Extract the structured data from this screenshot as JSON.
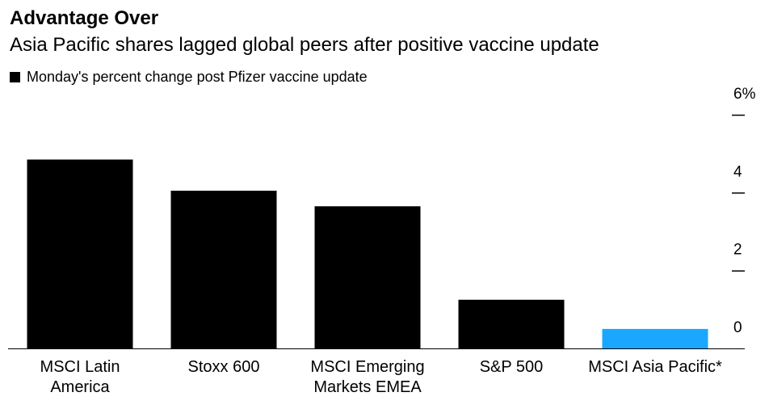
{
  "chart_data": {
    "type": "bar",
    "title": "Advantage Over",
    "subtitle": "Asia Pacific shares lagged global peers after positive vaccine update",
    "legend": [
      {
        "label": "Monday's percent change post Pfizer vaccine update",
        "color": "#000000"
      }
    ],
    "categories": [
      [
        "MSCI Latin",
        "America"
      ],
      [
        "Stoxx 600"
      ],
      [
        "MSCI Emerging",
        "Markets EMEA"
      ],
      [
        "S&P 500"
      ],
      [
        "MSCI Asia Pacific*"
      ]
    ],
    "values": [
      4.85,
      4.05,
      3.65,
      1.25,
      0.5
    ],
    "bar_colors": [
      "#000000",
      "#000000",
      "#000000",
      "#000000",
      "#1aa7ff"
    ],
    "ylim": [
      0,
      6
    ],
    "yticks": [
      {
        "value": 0,
        "label": "0"
      },
      {
        "value": 2,
        "label": "2"
      },
      {
        "value": 4,
        "label": "4"
      },
      {
        "value": 6,
        "label": "6%"
      }
    ],
    "y_axis_position": "right",
    "xlabel": "",
    "ylabel": ""
  }
}
